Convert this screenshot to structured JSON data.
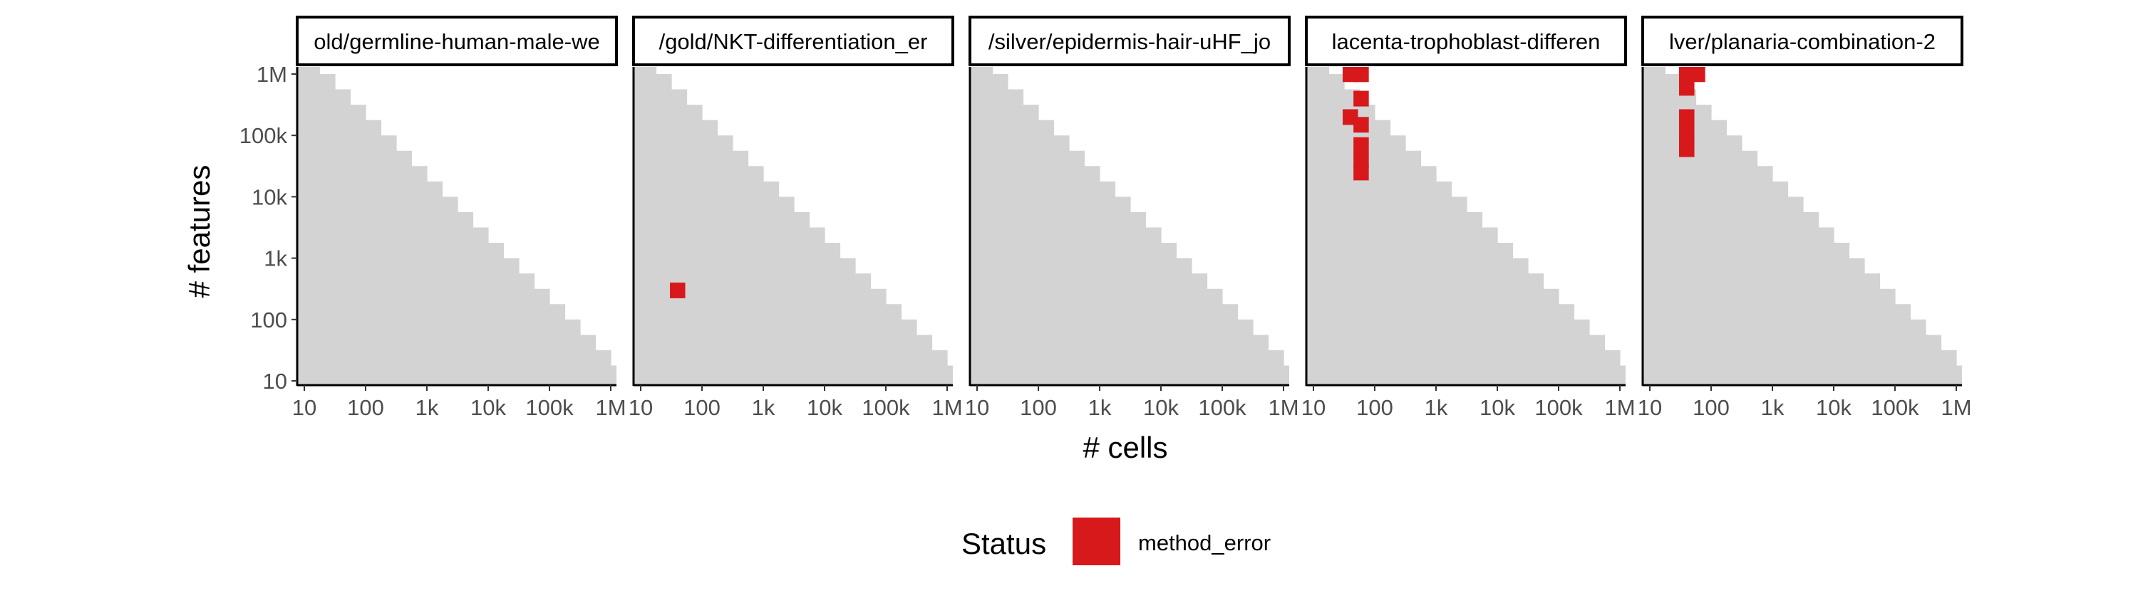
{
  "chart_data": {
    "type": "heatmap",
    "xlabel": "# cells",
    "ylabel": "# features",
    "x_scale": "log10",
    "y_scale": "log10",
    "xlim": [
      10,
      1000000
    ],
    "ylim": [
      10,
      1000000
    ],
    "x_ticks": [
      10,
      100,
      1000,
      10000,
      100000,
      1000000
    ],
    "x_tick_labels": [
      "10",
      "100",
      "1k",
      "10k",
      "100k",
      "1M"
    ],
    "y_ticks": [
      10,
      100,
      1000,
      10000,
      100000,
      1000000
    ],
    "y_tick_labels": [
      "10",
      "100",
      "1k",
      "10k",
      "100k",
      "1M"
    ],
    "grid": false,
    "background_region": {
      "color": "#d3d3d3",
      "description_rule": "tested combinations: log10(features) <= 7.5 - log10(cells)"
    },
    "legend": {
      "title": "Status",
      "position": "bottom",
      "entries": [
        {
          "label": "method_error",
          "color": "#d7191c"
        }
      ]
    },
    "panels": [
      {
        "label": "old/germline-human-male-we",
        "errors": []
      },
      {
        "label": "/gold/NKT-differentiation_er",
        "errors": [
          {
            "cells": 40,
            "features": 300
          }
        ]
      },
      {
        "label": "/silver/epidermis-hair-uHF_jo",
        "errors": []
      },
      {
        "label": "lacenta-trophoblast-differen",
        "errors": [
          {
            "cells": 40,
            "features": 1000000
          },
          {
            "cells": 60,
            "features": 1000000
          },
          {
            "cells": 60,
            "features": 400000
          },
          {
            "cells": 40,
            "features": 200000
          },
          {
            "cells": 60,
            "features": 150000
          },
          {
            "cells": 60,
            "features": 70000
          },
          {
            "cells": 60,
            "features": 40000
          },
          {
            "cells": 60,
            "features": 25000
          }
        ]
      },
      {
        "label": "lver/planaria-combination-2",
        "errors": [
          {
            "cells": 40,
            "features": 1000000
          },
          {
            "cells": 60,
            "features": 1000000
          },
          {
            "cells": 40,
            "features": 600000
          },
          {
            "cells": 40,
            "features": 200000
          },
          {
            "cells": 40,
            "features": 120000
          },
          {
            "cells": 40,
            "features": 80000
          },
          {
            "cells": 40,
            "features": 60000
          }
        ]
      }
    ]
  }
}
